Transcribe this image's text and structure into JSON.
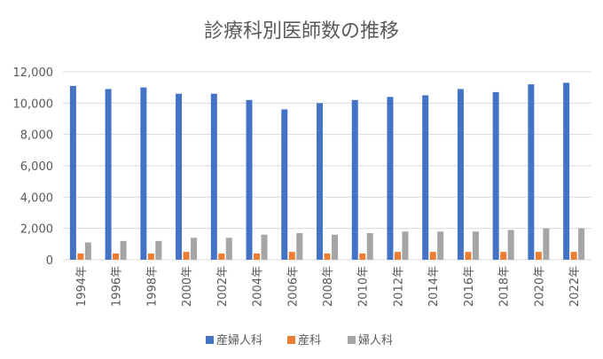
{
  "chart_data": {
    "type": "bar",
    "title": "診療科別医師数の推移",
    "xlabel": "",
    "ylabel": "",
    "categories": [
      "1994年",
      "1996年",
      "1998年",
      "2000年",
      "2002年",
      "2004年",
      "2006年",
      "2008年",
      "2010年",
      "2012年",
      "2014年",
      "2016年",
      "2018年",
      "2020年",
      "2022年"
    ],
    "series": [
      {
        "name": "産婦人科",
        "color": "#4472C4",
        "values": [
          11100,
          10900,
          11000,
          10600,
          10600,
          10200,
          9600,
          10000,
          10200,
          10400,
          10500,
          10900,
          10700,
          11200,
          11300
        ]
      },
      {
        "name": "産科",
        "color": "#ED7D31",
        "values": [
          400,
          400,
          400,
          500,
          400,
          400,
          500,
          400,
          400,
          500,
          500,
          500,
          500,
          500,
          500
        ]
      },
      {
        "name": "婦人科",
        "color": "#A5A5A5",
        "values": [
          1100,
          1200,
          1200,
          1400,
          1400,
          1600,
          1700,
          1600,
          1700,
          1800,
          1800,
          1800,
          1900,
          2000,
          2000
        ]
      }
    ],
    "ylim": [
      0,
      12000
    ],
    "yticks": [
      0,
      2000,
      4000,
      6000,
      8000,
      10000,
      12000
    ],
    "ytick_labels": [
      "0",
      "2,000",
      "4,000",
      "6,000",
      "8,000",
      "10,000",
      "12,000"
    ],
    "grid": true,
    "legend_position": "bottom"
  }
}
